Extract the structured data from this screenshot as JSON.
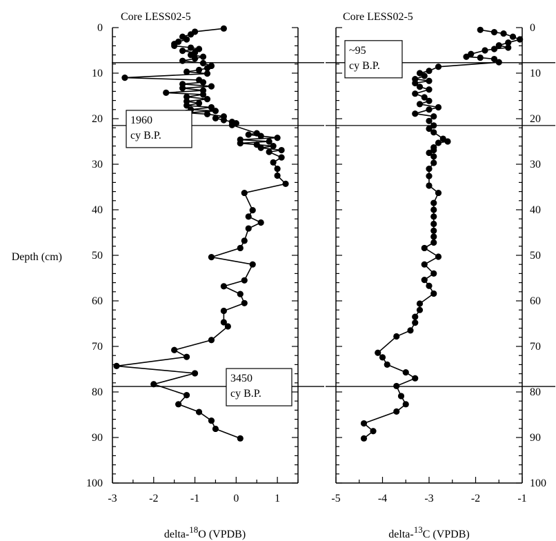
{
  "chart_data": [
    {
      "type": "line",
      "title": "Core LESS02-5",
      "xlabel_prefix": "delta-",
      "xlabel_sup": "18",
      "xlabel_suffix": "O (VPDB)",
      "ylabel": "Depth (cm)",
      "xlim": [
        -3,
        1.5
      ],
      "ylim": [
        0,
        100
      ],
      "y_inverted": true,
      "xticks": [
        -3,
        -2,
        -1,
        0,
        1
      ],
      "yticks": [
        0,
        10,
        20,
        30,
        40,
        50,
        60,
        70,
        80,
        90,
        100
      ],
      "horizontal_lines": [
        7.7,
        21.5,
        78.8
      ],
      "annotations": [
        {
          "lines": [
            "1960",
            "cy B.P."
          ],
          "depth": 21.5
        },
        {
          "lines": [
            "3450",
            "cy B.P."
          ],
          "depth": 78.8
        }
      ],
      "series": [
        {
          "points": [
            [
              -0.3,
              0.2
            ],
            [
              -1.0,
              0.9
            ],
            [
              -1.1,
              1.5
            ],
            [
              -1.3,
              2.0
            ],
            [
              -1.2,
              2.6
            ],
            [
              -1.4,
              3.1
            ],
            [
              -1.5,
              3.6
            ],
            [
              -1.5,
              4.0
            ],
            [
              -1.1,
              4.4
            ],
            [
              -0.9,
              4.7
            ],
            [
              -1.3,
              5.1
            ],
            [
              -1.0,
              5.5
            ],
            [
              -1.1,
              6.0
            ],
            [
              -0.8,
              6.4
            ],
            [
              -1.0,
              6.8
            ],
            [
              -1.3,
              7.3
            ],
            [
              -0.8,
              7.8
            ],
            [
              -0.6,
              8.4
            ],
            [
              -0.7,
              8.9
            ],
            [
              -0.9,
              9.3
            ],
            [
              -1.2,
              9.7
            ],
            [
              -0.7,
              10.1
            ],
            [
              -2.7,
              11.0
            ],
            [
              -0.9,
              11.5
            ],
            [
              -0.8,
              12.0
            ],
            [
              -1.3,
              12.4
            ],
            [
              -0.6,
              12.9
            ],
            [
              -1.3,
              13.3
            ],
            [
              -0.8,
              13.8
            ],
            [
              -1.7,
              14.3
            ],
            [
              -0.8,
              14.7
            ],
            [
              -1.2,
              15.2
            ],
            [
              -0.7,
              15.7
            ],
            [
              -1.2,
              16.2
            ],
            [
              -0.9,
              16.6
            ],
            [
              -1.2,
              17.1
            ],
            [
              -0.6,
              17.5
            ],
            [
              -1.1,
              18.0
            ],
            [
              -0.5,
              18.3
            ],
            [
              -1.2,
              18.7
            ],
            [
              -0.7,
              19.0
            ],
            [
              -0.3,
              19.5
            ],
            [
              -0.5,
              19.9
            ],
            [
              -0.3,
              20.3
            ],
            [
              -0.1,
              20.7
            ],
            [
              0.0,
              21.0
            ],
            [
              -0.1,
              21.4
            ],
            [
              0.5,
              23.2
            ],
            [
              0.3,
              23.5
            ],
            [
              0.6,
              23.8
            ],
            [
              1.0,
              24.2
            ],
            [
              0.1,
              24.6
            ],
            [
              0.8,
              25.0
            ],
            [
              0.1,
              25.4
            ],
            [
              0.5,
              25.7
            ],
            [
              0.9,
              26.0
            ],
            [
              0.6,
              26.4
            ],
            [
              1.1,
              26.9
            ],
            [
              0.8,
              27.3
            ],
            [
              1.1,
              28.5
            ],
            [
              0.9,
              29.6
            ],
            [
              1.0,
              31.0
            ],
            [
              1.0,
              32.5
            ],
            [
              1.2,
              34.3
            ],
            [
              0.2,
              36.3
            ],
            [
              0.4,
              40.1
            ],
            [
              0.3,
              41.5
            ],
            [
              0.6,
              42.8
            ],
            [
              0.3,
              44.1
            ],
            [
              0.2,
              46.8
            ],
            [
              0.1,
              48.4
            ],
            [
              -0.6,
              50.4
            ],
            [
              0.4,
              52.0
            ],
            [
              0.2,
              55.5
            ],
            [
              -0.3,
              56.8
            ],
            [
              0.1,
              58.5
            ],
            [
              0.2,
              60.5
            ],
            [
              -0.3,
              62.2
            ],
            [
              -0.3,
              64.7
            ],
            [
              -0.2,
              65.6
            ],
            [
              -0.6,
              68.6
            ],
            [
              -1.5,
              70.8
            ],
            [
              -1.2,
              72.3
            ],
            [
              -2.9,
              74.3
            ],
            [
              -1.0,
              75.9
            ],
            [
              -2.0,
              78.3
            ],
            [
              -1.2,
              80.7
            ],
            [
              -1.4,
              82.7
            ],
            [
              -0.9,
              84.4
            ],
            [
              -0.6,
              86.3
            ],
            [
              -0.5,
              88.1
            ],
            [
              0.1,
              90.2
            ]
          ]
        }
      ]
    },
    {
      "type": "line",
      "title": "Core LESS02-5",
      "xlabel_prefix": "delta-",
      "xlabel_sup": "13",
      "xlabel_suffix": "C (VPDB)",
      "ylabel": "",
      "xlim": [
        -5,
        -1
      ],
      "ylim": [
        0,
        100
      ],
      "y_inverted": true,
      "xticks": [
        -5,
        -4,
        -3,
        -2,
        -1
      ],
      "yticks": [
        0,
        10,
        20,
        30,
        40,
        50,
        60,
        70,
        80,
        90,
        100
      ],
      "horizontal_lines": [
        7.7,
        21.5,
        78.8
      ],
      "annotations": [
        {
          "lines": [
            "~95",
            "cy B.P."
          ],
          "depth": 7.7
        }
      ],
      "series": [
        {
          "points": [
            [
              -1.9,
              0.5
            ],
            [
              -1.6,
              1.0
            ],
            [
              -1.4,
              1.3
            ],
            [
              -1.2,
              2.0
            ],
            [
              -1.05,
              2.6
            ],
            [
              -1.3,
              3.3
            ],
            [
              -1.5,
              3.9
            ],
            [
              -1.3,
              4.4
            ],
            [
              -1.6,
              4.7
            ],
            [
              -1.8,
              5.0
            ],
            [
              -2.1,
              5.8
            ],
            [
              -2.2,
              6.4
            ],
            [
              -1.9,
              6.6
            ],
            [
              -1.6,
              6.9
            ],
            [
              -1.5,
              7.6
            ],
            [
              -2.8,
              8.6
            ],
            [
              -3.0,
              9.5
            ],
            [
              -3.2,
              10.0
            ],
            [
              -3.1,
              10.6
            ],
            [
              -3.3,
              11.3
            ],
            [
              -3.0,
              11.7
            ],
            [
              -3.3,
              12.2
            ],
            [
              -3.2,
              13.0
            ],
            [
              -3.0,
              13.6
            ],
            [
              -3.3,
              14.5
            ],
            [
              -3.1,
              15.3
            ],
            [
              -3.0,
              16.1
            ],
            [
              -3.2,
              16.8
            ],
            [
              -2.8,
              17.5
            ],
            [
              -3.0,
              18.0
            ],
            [
              -3.3,
              18.9
            ],
            [
              -2.9,
              19.5
            ],
            [
              -3.0,
              20.5
            ],
            [
              -2.9,
              21.5
            ],
            [
              -3.0,
              22.2
            ],
            [
              -2.9,
              23.0
            ],
            [
              -2.7,
              24.4
            ],
            [
              -2.6,
              25.0
            ],
            [
              -2.8,
              25.3
            ],
            [
              -2.9,
              26.3
            ],
            [
              -2.9,
              26.9
            ],
            [
              -3.0,
              27.5
            ],
            [
              -2.9,
              28.3
            ],
            [
              -2.9,
              29.7
            ],
            [
              -3.0,
              31.0
            ],
            [
              -3.0,
              32.6
            ],
            [
              -3.0,
              34.7
            ],
            [
              -2.8,
              36.3
            ],
            [
              -2.9,
              38.5
            ],
            [
              -2.9,
              40.0
            ],
            [
              -2.9,
              41.5
            ],
            [
              -2.9,
              43.1
            ],
            [
              -2.9,
              44.6
            ],
            [
              -2.9,
              45.9
            ],
            [
              -2.9,
              47.2
            ],
            [
              -3.1,
              48.4
            ],
            [
              -2.8,
              50.3
            ],
            [
              -3.1,
              52.0
            ],
            [
              -2.9,
              54.0
            ],
            [
              -3.1,
              55.4
            ],
            [
              -3.0,
              56.7
            ],
            [
              -2.9,
              58.4
            ],
            [
              -3.2,
              60.6
            ],
            [
              -3.2,
              62.0
            ],
            [
              -3.3,
              63.5
            ],
            [
              -3.3,
              64.8
            ],
            [
              -3.4,
              66.5
            ],
            [
              -3.7,
              67.8
            ],
            [
              -4.1,
              71.4
            ],
            [
              -4.0,
              72.4
            ],
            [
              -3.9,
              74.0
            ],
            [
              -3.5,
              75.7
            ],
            [
              -3.3,
              77.0
            ],
            [
              -3.7,
              78.7
            ],
            [
              -3.6,
              80.9
            ],
            [
              -3.5,
              82.7
            ],
            [
              -3.7,
              84.3
            ],
            [
              -4.4,
              86.9
            ],
            [
              -4.2,
              88.6
            ],
            [
              -4.4,
              90.2
            ]
          ]
        }
      ]
    }
  ]
}
